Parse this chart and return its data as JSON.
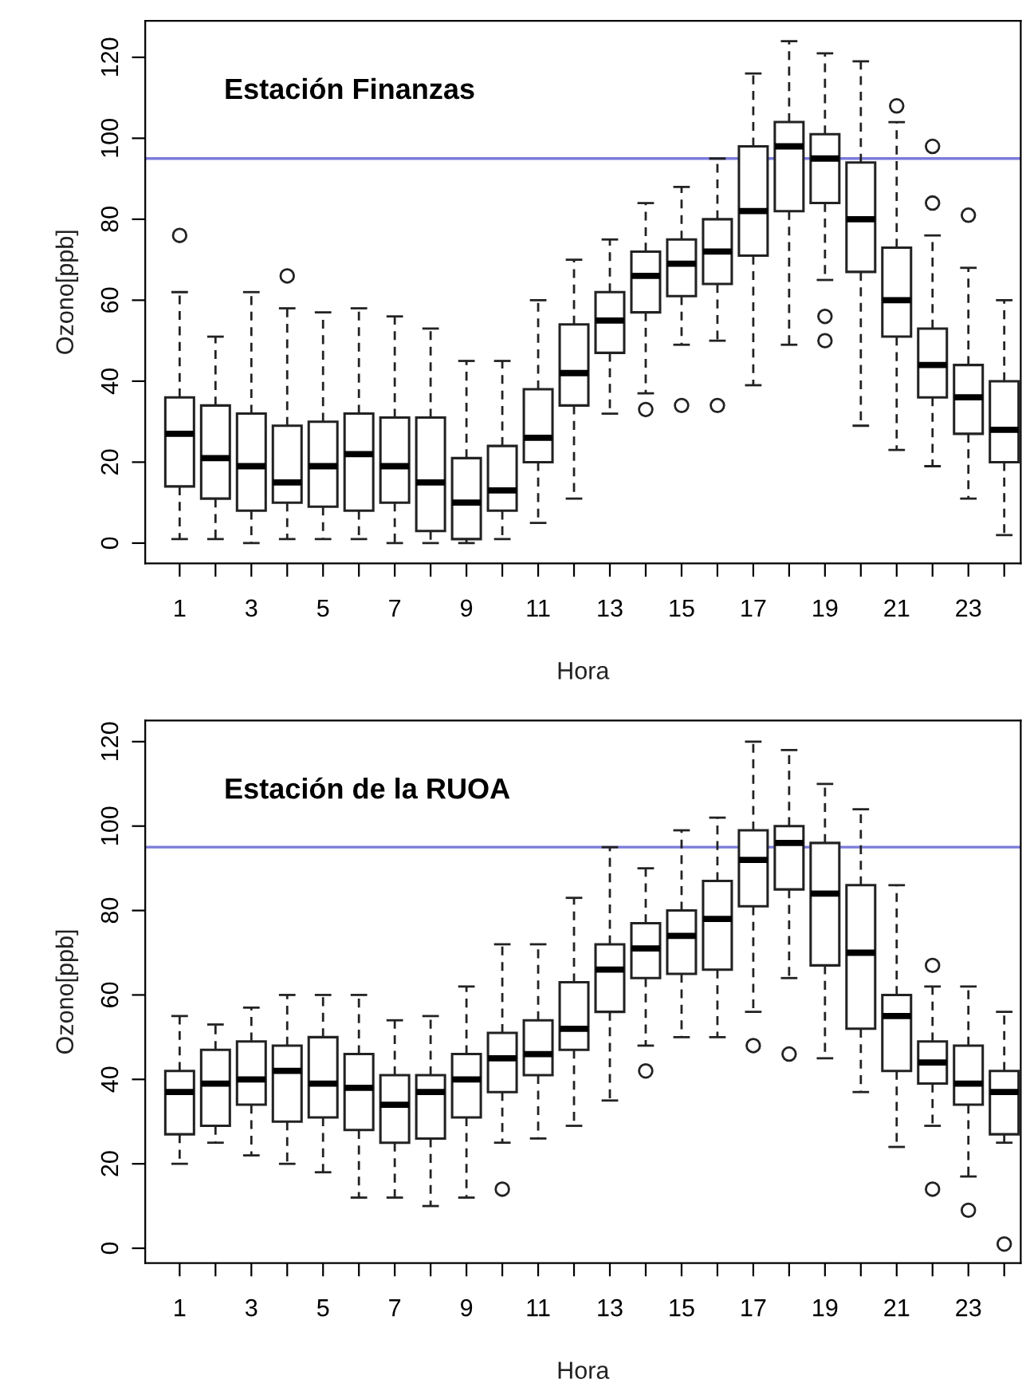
{
  "chart_data": [
    {
      "type": "box",
      "title": "Estación Finanzas",
      "xlabel": "Hora",
      "ylabel": "Ozono[ppb]",
      "categories": [
        "1",
        null,
        "3",
        null,
        "5",
        null,
        "7",
        null,
        "9",
        null,
        "11",
        null,
        "13",
        null,
        "15",
        null,
        "17",
        null,
        "19",
        null,
        "21",
        null,
        "23",
        null
      ],
      "ylim": [
        -5,
        129
      ],
      "yticks": [
        0,
        20,
        40,
        60,
        80,
        100,
        120
      ],
      "grid": false,
      "ref_lines": [
        {
          "axis": "y",
          "value": 95,
          "color": "#7b7bdd"
        }
      ],
      "boxes": [
        {
          "low": 1,
          "q1": 14,
          "median": 27,
          "q3": 36,
          "high": 62,
          "outliers": [
            76
          ]
        },
        {
          "low": 1,
          "q1": 11,
          "median": 21,
          "q3": 34,
          "high": 51
        },
        {
          "low": 0,
          "q1": 8,
          "median": 19,
          "q3": 32,
          "high": 62
        },
        {
          "low": 1,
          "q1": 10,
          "median": 15,
          "q3": 29,
          "high": 58,
          "outliers": [
            66
          ]
        },
        {
          "low": 1,
          "q1": 9,
          "median": 19,
          "q3": 30,
          "high": 57
        },
        {
          "low": 1,
          "q1": 8,
          "median": 22,
          "q3": 32,
          "high": 58
        },
        {
          "low": 0,
          "q1": 10,
          "median": 19,
          "q3": 31,
          "high": 56
        },
        {
          "low": 0,
          "q1": 3,
          "median": 15,
          "q3": 31,
          "high": 53
        },
        {
          "low": 0,
          "q1": 1,
          "median": 10,
          "q3": 21,
          "high": 45
        },
        {
          "low": 1,
          "q1": 8,
          "median": 13,
          "q3": 24,
          "high": 45
        },
        {
          "low": 5,
          "q1": 20,
          "median": 26,
          "q3": 38,
          "high": 60
        },
        {
          "low": 11,
          "q1": 34,
          "median": 42,
          "q3": 54,
          "high": 70
        },
        {
          "low": 32,
          "q1": 47,
          "median": 55,
          "q3": 62,
          "high": 75
        },
        {
          "low": 37,
          "q1": 57,
          "median": 66,
          "q3": 72,
          "high": 84,
          "outliers": [
            33
          ]
        },
        {
          "low": 49,
          "q1": 61,
          "median": 69,
          "q3": 75,
          "high": 88,
          "outliers": [
            34
          ]
        },
        {
          "low": 50,
          "q1": 64,
          "median": 72,
          "q3": 80,
          "high": 95,
          "outliers": [
            34
          ]
        },
        {
          "low": 39,
          "q1": 71,
          "median": 82,
          "q3": 98,
          "high": 116
        },
        {
          "low": 49,
          "q1": 82,
          "median": 98,
          "q3": 104,
          "high": 124
        },
        {
          "low": 65,
          "q1": 84,
          "median": 95,
          "q3": 101,
          "high": 121,
          "outliers": [
            56,
            50
          ]
        },
        {
          "low": 29,
          "q1": 67,
          "median": 80,
          "q3": 94,
          "high": 119
        },
        {
          "low": 23,
          "q1": 51,
          "median": 60,
          "q3": 73,
          "high": 104,
          "outliers": [
            108
          ]
        },
        {
          "low": 19,
          "q1": 36,
          "median": 44,
          "q3": 53,
          "high": 76,
          "outliers": [
            98,
            84
          ]
        },
        {
          "low": 11,
          "q1": 27,
          "median": 36,
          "q3": 44,
          "high": 68,
          "outliers": [
            81
          ]
        },
        {
          "low": 2,
          "q1": 20,
          "median": 28,
          "q3": 40,
          "high": 60
        }
      ]
    },
    {
      "type": "box",
      "title": "Estación de la RUOA",
      "xlabel": "Hora",
      "ylabel": "Ozono[ppb]",
      "categories": [
        "1",
        null,
        "3",
        null,
        "5",
        null,
        "7",
        null,
        "9",
        null,
        "11",
        null,
        "13",
        null,
        "15",
        null,
        "17",
        null,
        "19",
        null,
        "21",
        null,
        "23",
        null
      ],
      "ylim": [
        -3.5,
        125
      ],
      "yticks": [
        0,
        20,
        40,
        60,
        80,
        100,
        120
      ],
      "grid": false,
      "ref_lines": [
        {
          "axis": "y",
          "value": 95,
          "color": "#7b7bdd"
        }
      ],
      "boxes": [
        {
          "low": 20,
          "q1": 27,
          "median": 37,
          "q3": 42,
          "high": 55
        },
        {
          "low": 25,
          "q1": 29,
          "median": 39,
          "q3": 47,
          "high": 53
        },
        {
          "low": 22,
          "q1": 34,
          "median": 40,
          "q3": 49,
          "high": 57
        },
        {
          "low": 20,
          "q1": 30,
          "median": 42,
          "q3": 48,
          "high": 60
        },
        {
          "low": 18,
          "q1": 31,
          "median": 39,
          "q3": 50,
          "high": 60
        },
        {
          "low": 12,
          "q1": 28,
          "median": 38,
          "q3": 46,
          "high": 60
        },
        {
          "low": 12,
          "q1": 25,
          "median": 34,
          "q3": 41,
          "high": 54
        },
        {
          "low": 10,
          "q1": 26,
          "median": 37,
          "q3": 41,
          "high": 55
        },
        {
          "low": 12,
          "q1": 31,
          "median": 40,
          "q3": 46,
          "high": 62
        },
        {
          "low": 25,
          "q1": 37,
          "median": 45,
          "q3": 51,
          "high": 72,
          "outliers": [
            14
          ]
        },
        {
          "low": 26,
          "q1": 41,
          "median": 46,
          "q3": 54,
          "high": 72
        },
        {
          "low": 29,
          "q1": 47,
          "median": 52,
          "q3": 63,
          "high": 83
        },
        {
          "low": 35,
          "q1": 56,
          "median": 66,
          "q3": 72,
          "high": 95
        },
        {
          "low": 48,
          "q1": 64,
          "median": 71,
          "q3": 77,
          "high": 90,
          "outliers": [
            42
          ]
        },
        {
          "low": 50,
          "q1": 65,
          "median": 74,
          "q3": 80,
          "high": 99
        },
        {
          "low": 50,
          "q1": 66,
          "median": 78,
          "q3": 87,
          "high": 102
        },
        {
          "low": 56,
          "q1": 81,
          "median": 92,
          "q3": 99,
          "high": 120,
          "outliers": [
            48
          ]
        },
        {
          "low": 64,
          "q1": 85,
          "median": 96,
          "q3": 100,
          "high": 118,
          "outliers": [
            46
          ]
        },
        {
          "low": 45,
          "q1": 67,
          "median": 84,
          "q3": 96,
          "high": 110
        },
        {
          "low": 37,
          "q1": 52,
          "median": 70,
          "q3": 86,
          "high": 104
        },
        {
          "low": 24,
          "q1": 42,
          "median": 55,
          "q3": 60,
          "high": 86
        },
        {
          "low": 29,
          "q1": 39,
          "median": 44,
          "q3": 49,
          "high": 62,
          "outliers": [
            67,
            14
          ]
        },
        {
          "low": 17,
          "q1": 34,
          "median": 39,
          "q3": 48,
          "high": 62,
          "outliers": [
            9
          ]
        },
        {
          "low": 25,
          "q1": 27,
          "median": 37,
          "q3": 42,
          "high": 56,
          "outliers": [
            1
          ]
        }
      ]
    }
  ]
}
